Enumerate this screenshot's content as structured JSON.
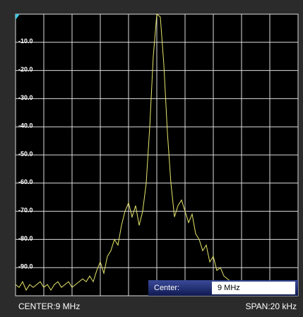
{
  "chart_data": {
    "type": "line",
    "color": "#e6e66a",
    "values": [
      -96,
      -97,
      -95,
      -98,
      -96,
      -97,
      -96,
      -95,
      -97,
      -96,
      -98,
      -96,
      -95,
      -97,
      -96,
      -95,
      -97,
      -96,
      -95,
      -94,
      -95,
      -93,
      -95,
      -91,
      -88,
      -92,
      -86,
      -84,
      -80,
      -82,
      -75,
      -70,
      -67,
      -72,
      -68,
      -75,
      -70,
      -60,
      -40,
      -15,
      0,
      -1,
      -18,
      -42,
      -60,
      -72,
      -68,
      -66,
      -70,
      -74,
      -71,
      -78,
      -80,
      -84,
      -82,
      -88,
      -86,
      -91,
      -90,
      -93,
      -94,
      -95,
      -96,
      -97,
      -96,
      -98,
      -97,
      -96,
      -97,
      -98,
      -96,
      -97,
      -98,
      -97,
      -96,
      -98,
      -97,
      -96,
      -97,
      -98,
      -97
    ],
    "ylim": [
      -100,
      0
    ],
    "yticks": [
      {
        "value": -10,
        "label": "-10.0"
      },
      {
        "value": -20,
        "label": "-20.0"
      },
      {
        "value": -30,
        "label": "-30.0"
      },
      {
        "value": -40,
        "label": "-40.0"
      },
      {
        "value": -50,
        "label": "-50.0"
      },
      {
        "value": -60,
        "label": "-60.0"
      },
      {
        "value": -70,
        "label": "-70.0"
      },
      {
        "value": -80,
        "label": "-80.0"
      },
      {
        "value": -90,
        "label": "-90.0"
      }
    ],
    "grid": true
  },
  "footer": {
    "center": "CENTER:9 MHz",
    "span": "SPAN:20 kHz"
  },
  "input": {
    "label": "Center:",
    "value": "9 MHz"
  }
}
